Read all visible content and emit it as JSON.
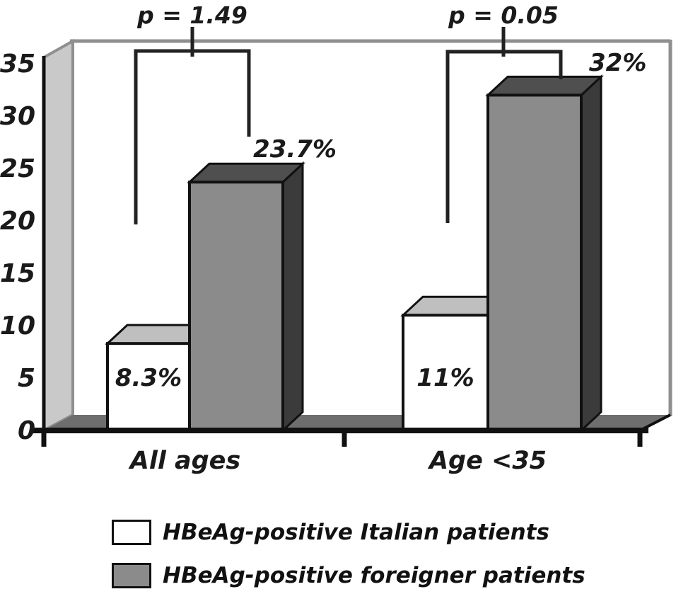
{
  "chart_data": {
    "type": "bar",
    "style": "3d-column",
    "title": "",
    "xlabel": "",
    "ylabel": "",
    "categories": [
      "All ages",
      "Age <35"
    ],
    "series": [
      {
        "name": "HBeAg-positive Italian patients",
        "color": "#ffffff",
        "values": [
          8.3,
          11
        ],
        "value_labels": [
          "8.3%",
          "11%"
        ]
      },
      {
        "name": "HBeAg-positive foreigner patients",
        "color": "#8b8b8b",
        "values": [
          23.7,
          32
        ],
        "value_labels": [
          "23.7%",
          "32%"
        ]
      }
    ],
    "significance": [
      {
        "category": "All ages",
        "label": "p = 1.49",
        "p": 1.49
      },
      {
        "category": "Age <35",
        "label": "p = 0.05",
        "p": 0.05
      }
    ],
    "ylim": [
      0,
      35
    ],
    "yticks": [
      0,
      5,
      10,
      15,
      20,
      25,
      30,
      35
    ],
    "grid": false,
    "legend_position": "bottom-left",
    "colors": {
      "ink": "#1a1a1a",
      "bar_top_light": "#bfbfbf",
      "bar_top_dark": "#4f4f4f",
      "bar_side_dark": "#3b3b3b",
      "floor": "#6e6e6e",
      "left_wall": "#c9c9c9",
      "frame": "#8f8f8f"
    }
  }
}
